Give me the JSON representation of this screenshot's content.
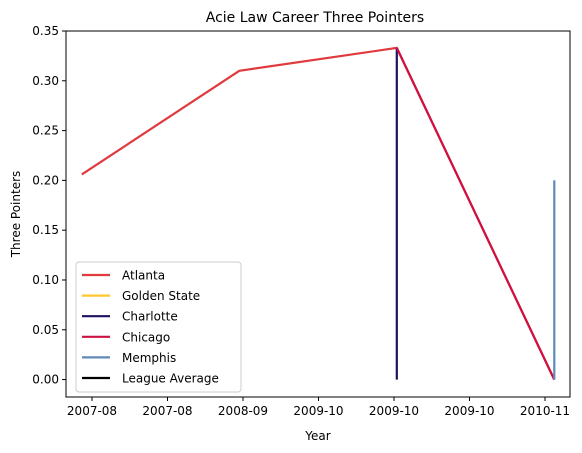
{
  "chart_data": {
    "type": "line",
    "title": "Acie Law Career Three Pointers",
    "xlabel": "Year",
    "ylabel": "Three Pointers",
    "x_ticks": [
      "2007-08",
      "2007-08",
      "2008-09",
      "2009-10",
      "2009-10",
      "2009-10",
      "2010-11"
    ],
    "x_range": [
      -0.1,
      3.1
    ],
    "ylim": [
      -0.0175,
      0.35
    ],
    "y_ticks": [
      0.0,
      0.05,
      0.1,
      0.15,
      0.2,
      0.25,
      0.3,
      0.35
    ],
    "y_tick_labels": [
      "0.00",
      "0.05",
      "0.10",
      "0.15",
      "0.20",
      "0.25",
      "0.30",
      "0.35"
    ],
    "grid": false,
    "legend_position": "lower-left",
    "series": [
      {
        "name": "Atlanta",
        "color": "#e03a3e",
        "points": [
          [
            0,
            0.206
          ],
          [
            1,
            0.31
          ],
          [
            2,
            0.333
          ],
          [
            3,
            0.0
          ]
        ]
      },
      {
        "name": "Golden State",
        "color": "#ffc72c",
        "points": []
      },
      {
        "name": "Charlotte",
        "color": "#1d1160",
        "points": [
          [
            2,
            0.333
          ],
          [
            2,
            0.0
          ]
        ]
      },
      {
        "name": "Chicago",
        "color": "#ce1141",
        "points": [
          [
            2,
            0.333
          ],
          [
            3,
            0.0
          ]
        ]
      },
      {
        "name": "Memphis",
        "color": "#5d8ab9",
        "points": [
          [
            3,
            0.2
          ],
          [
            3,
            0.0
          ]
        ]
      },
      {
        "name": "League Average",
        "color": "#000000",
        "points": []
      }
    ]
  }
}
